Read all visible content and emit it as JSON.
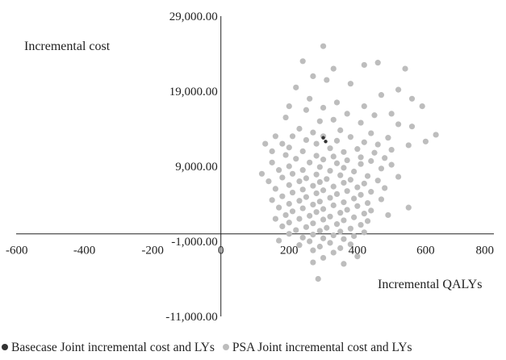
{
  "chart_data": {
    "type": "scatter",
    "title": "",
    "xlabel": "Incremental QALYs",
    "ylabel": "Incremental cost",
    "xlim": [
      -600,
      800
    ],
    "ylim": [
      -11000,
      29000
    ],
    "x_ticks": [
      -600,
      -400,
      -200,
      0,
      200,
      400,
      600,
      800
    ],
    "x_tick_labels": [
      "-600",
      "-400",
      "-200",
      "0",
      "200",
      "400",
      "600",
      "800"
    ],
    "y_ticks": [
      29000,
      19000,
      9000,
      -1000,
      -11000
    ],
    "y_tick_labels": [
      "29,000.00",
      "19,000.00",
      "9,000.00",
      "-1,000.00",
      "-11,000.00"
    ],
    "grid": false,
    "legend_position": "bottom",
    "series": [
      {
        "name": "PSA Joint incremental cost and LYs",
        "color": "#bdbdbd",
        "points": [
          [
            300,
            25000
          ],
          [
            240,
            23000
          ],
          [
            330,
            22000
          ],
          [
            420,
            22500
          ],
          [
            460,
            22800
          ],
          [
            540,
            22000
          ],
          [
            270,
            21000
          ],
          [
            310,
            20500
          ],
          [
            380,
            20000
          ],
          [
            520,
            19200
          ],
          [
            220,
            19500
          ],
          [
            470,
            18500
          ],
          [
            560,
            18000
          ],
          [
            260,
            18000
          ],
          [
            340,
            17500
          ],
          [
            590,
            17000
          ],
          [
            420,
            17000
          ],
          [
            200,
            17000
          ],
          [
            300,
            16800
          ],
          [
            250,
            16500
          ],
          [
            370,
            16000
          ],
          [
            500,
            16000
          ],
          [
            450,
            15800
          ],
          [
            190,
            15500
          ],
          [
            290,
            15000
          ],
          [
            330,
            15200
          ],
          [
            410,
            14800
          ],
          [
            520,
            14600
          ],
          [
            560,
            14300
          ],
          [
            230,
            14000
          ],
          [
            350,
            13800
          ],
          [
            270,
            13500
          ],
          [
            440,
            13400
          ],
          [
            630,
            13200
          ],
          [
            160,
            13000
          ],
          [
            210,
            13000
          ],
          [
            300,
            13000
          ],
          [
            380,
            12900
          ],
          [
            490,
            12800
          ],
          [
            600,
            12300
          ],
          [
            250,
            12500
          ],
          [
            340,
            12400
          ],
          [
            420,
            12200
          ],
          [
            130,
            12000
          ],
          [
            180,
            12000
          ],
          [
            280,
            12000
          ],
          [
            460,
            11900
          ],
          [
            550,
            11800
          ],
          [
            200,
            11500
          ],
          [
            320,
            11400
          ],
          [
            400,
            11300
          ],
          [
            500,
            11200
          ],
          [
            150,
            11000
          ],
          [
            240,
            11000
          ],
          [
            360,
            10900
          ],
          [
            450,
            10800
          ],
          [
            190,
            10500
          ],
          [
            280,
            10400
          ],
          [
            330,
            10300
          ],
          [
            410,
            10200
          ],
          [
            480,
            10100
          ],
          [
            220,
            10000
          ],
          [
            300,
            9900
          ],
          [
            370,
            9800
          ],
          [
            440,
            9700
          ],
          [
            150,
            9500
          ],
          [
            260,
            9500
          ],
          [
            340,
            9400
          ],
          [
            410,
            9300
          ],
          [
            500,
            9200
          ],
          [
            200,
            9000
          ],
          [
            290,
            8900
          ],
          [
            360,
            8800
          ],
          [
            470,
            8700
          ],
          [
            170,
            8500
          ],
          [
            240,
            8500
          ],
          [
            320,
            8400
          ],
          [
            390,
            8300
          ],
          [
            120,
            8000
          ],
          [
            210,
            8000
          ],
          [
            280,
            7900
          ],
          [
            350,
            7800
          ],
          [
            430,
            7700
          ],
          [
            520,
            7600
          ],
          [
            180,
            7500
          ],
          [
            250,
            7400
          ],
          [
            310,
            7300
          ],
          [
            380,
            7200
          ],
          [
            460,
            7100
          ],
          [
            140,
            7000
          ],
          [
            230,
            7000
          ],
          [
            290,
            6900
          ],
          [
            360,
            6800
          ],
          [
            420,
            6700
          ],
          [
            200,
            6500
          ],
          [
            270,
            6400
          ],
          [
            330,
            6300
          ],
          [
            400,
            6200
          ],
          [
            480,
            6100
          ],
          [
            160,
            6000
          ],
          [
            240,
            5900
          ],
          [
            300,
            5800
          ],
          [
            370,
            5700
          ],
          [
            440,
            5600
          ],
          [
            210,
            5500
          ],
          [
            280,
            5400
          ],
          [
            340,
            5300
          ],
          [
            410,
            5200
          ],
          [
            180,
            5000
          ],
          [
            250,
            4900
          ],
          [
            320,
            4800
          ],
          [
            390,
            4700
          ],
          [
            470,
            4600
          ],
          [
            150,
            4500
          ],
          [
            230,
            4400
          ],
          [
            290,
            4300
          ],
          [
            360,
            4200
          ],
          [
            430,
            4100
          ],
          [
            200,
            4000
          ],
          [
            270,
            3900
          ],
          [
            330,
            3800
          ],
          [
            400,
            3700
          ],
          [
            550,
            3500
          ],
          [
            170,
            3500
          ],
          [
            240,
            3400
          ],
          [
            300,
            3300
          ],
          [
            370,
            3200
          ],
          [
            440,
            3100
          ],
          [
            210,
            3000
          ],
          [
            280,
            2900
          ],
          [
            350,
            2800
          ],
          [
            420,
            2700
          ],
          [
            490,
            2500
          ],
          [
            190,
            2500
          ],
          [
            260,
            2400
          ],
          [
            320,
            2300
          ],
          [
            390,
            2200
          ],
          [
            160,
            2000
          ],
          [
            230,
            2000
          ],
          [
            300,
            1900
          ],
          [
            360,
            1800
          ],
          [
            430,
            1700
          ],
          [
            200,
            1500
          ],
          [
            270,
            1400
          ],
          [
            340,
            1300
          ],
          [
            410,
            1200
          ],
          [
            180,
            1000
          ],
          [
            250,
            900
          ],
          [
            310,
            800
          ],
          [
            380,
            700
          ],
          [
            220,
            500
          ],
          [
            290,
            400
          ],
          [
            350,
            300
          ],
          [
            420,
            200
          ],
          [
            200,
            0
          ],
          [
            270,
            -100
          ],
          [
            330,
            -200
          ],
          [
            390,
            -300
          ],
          [
            240,
            -500
          ],
          [
            300,
            -600
          ],
          [
            360,
            -700
          ],
          [
            170,
            -900
          ],
          [
            260,
            -1000
          ],
          [
            320,
            -1200
          ],
          [
            380,
            -1400
          ],
          [
            230,
            -1500
          ],
          [
            290,
            -1700
          ],
          [
            350,
            -1900
          ],
          [
            270,
            -2200
          ],
          [
            330,
            -2500
          ],
          [
            400,
            -3000
          ],
          [
            300,
            -3200
          ],
          [
            270,
            -3800
          ],
          [
            360,
            -4000
          ],
          [
            285,
            -6000
          ]
        ]
      },
      {
        "name": "Basecase Joint incremental cost and LYs",
        "color": "#333333",
        "points": [
          [
            300,
            12800
          ],
          [
            307,
            12300
          ]
        ]
      }
    ]
  }
}
